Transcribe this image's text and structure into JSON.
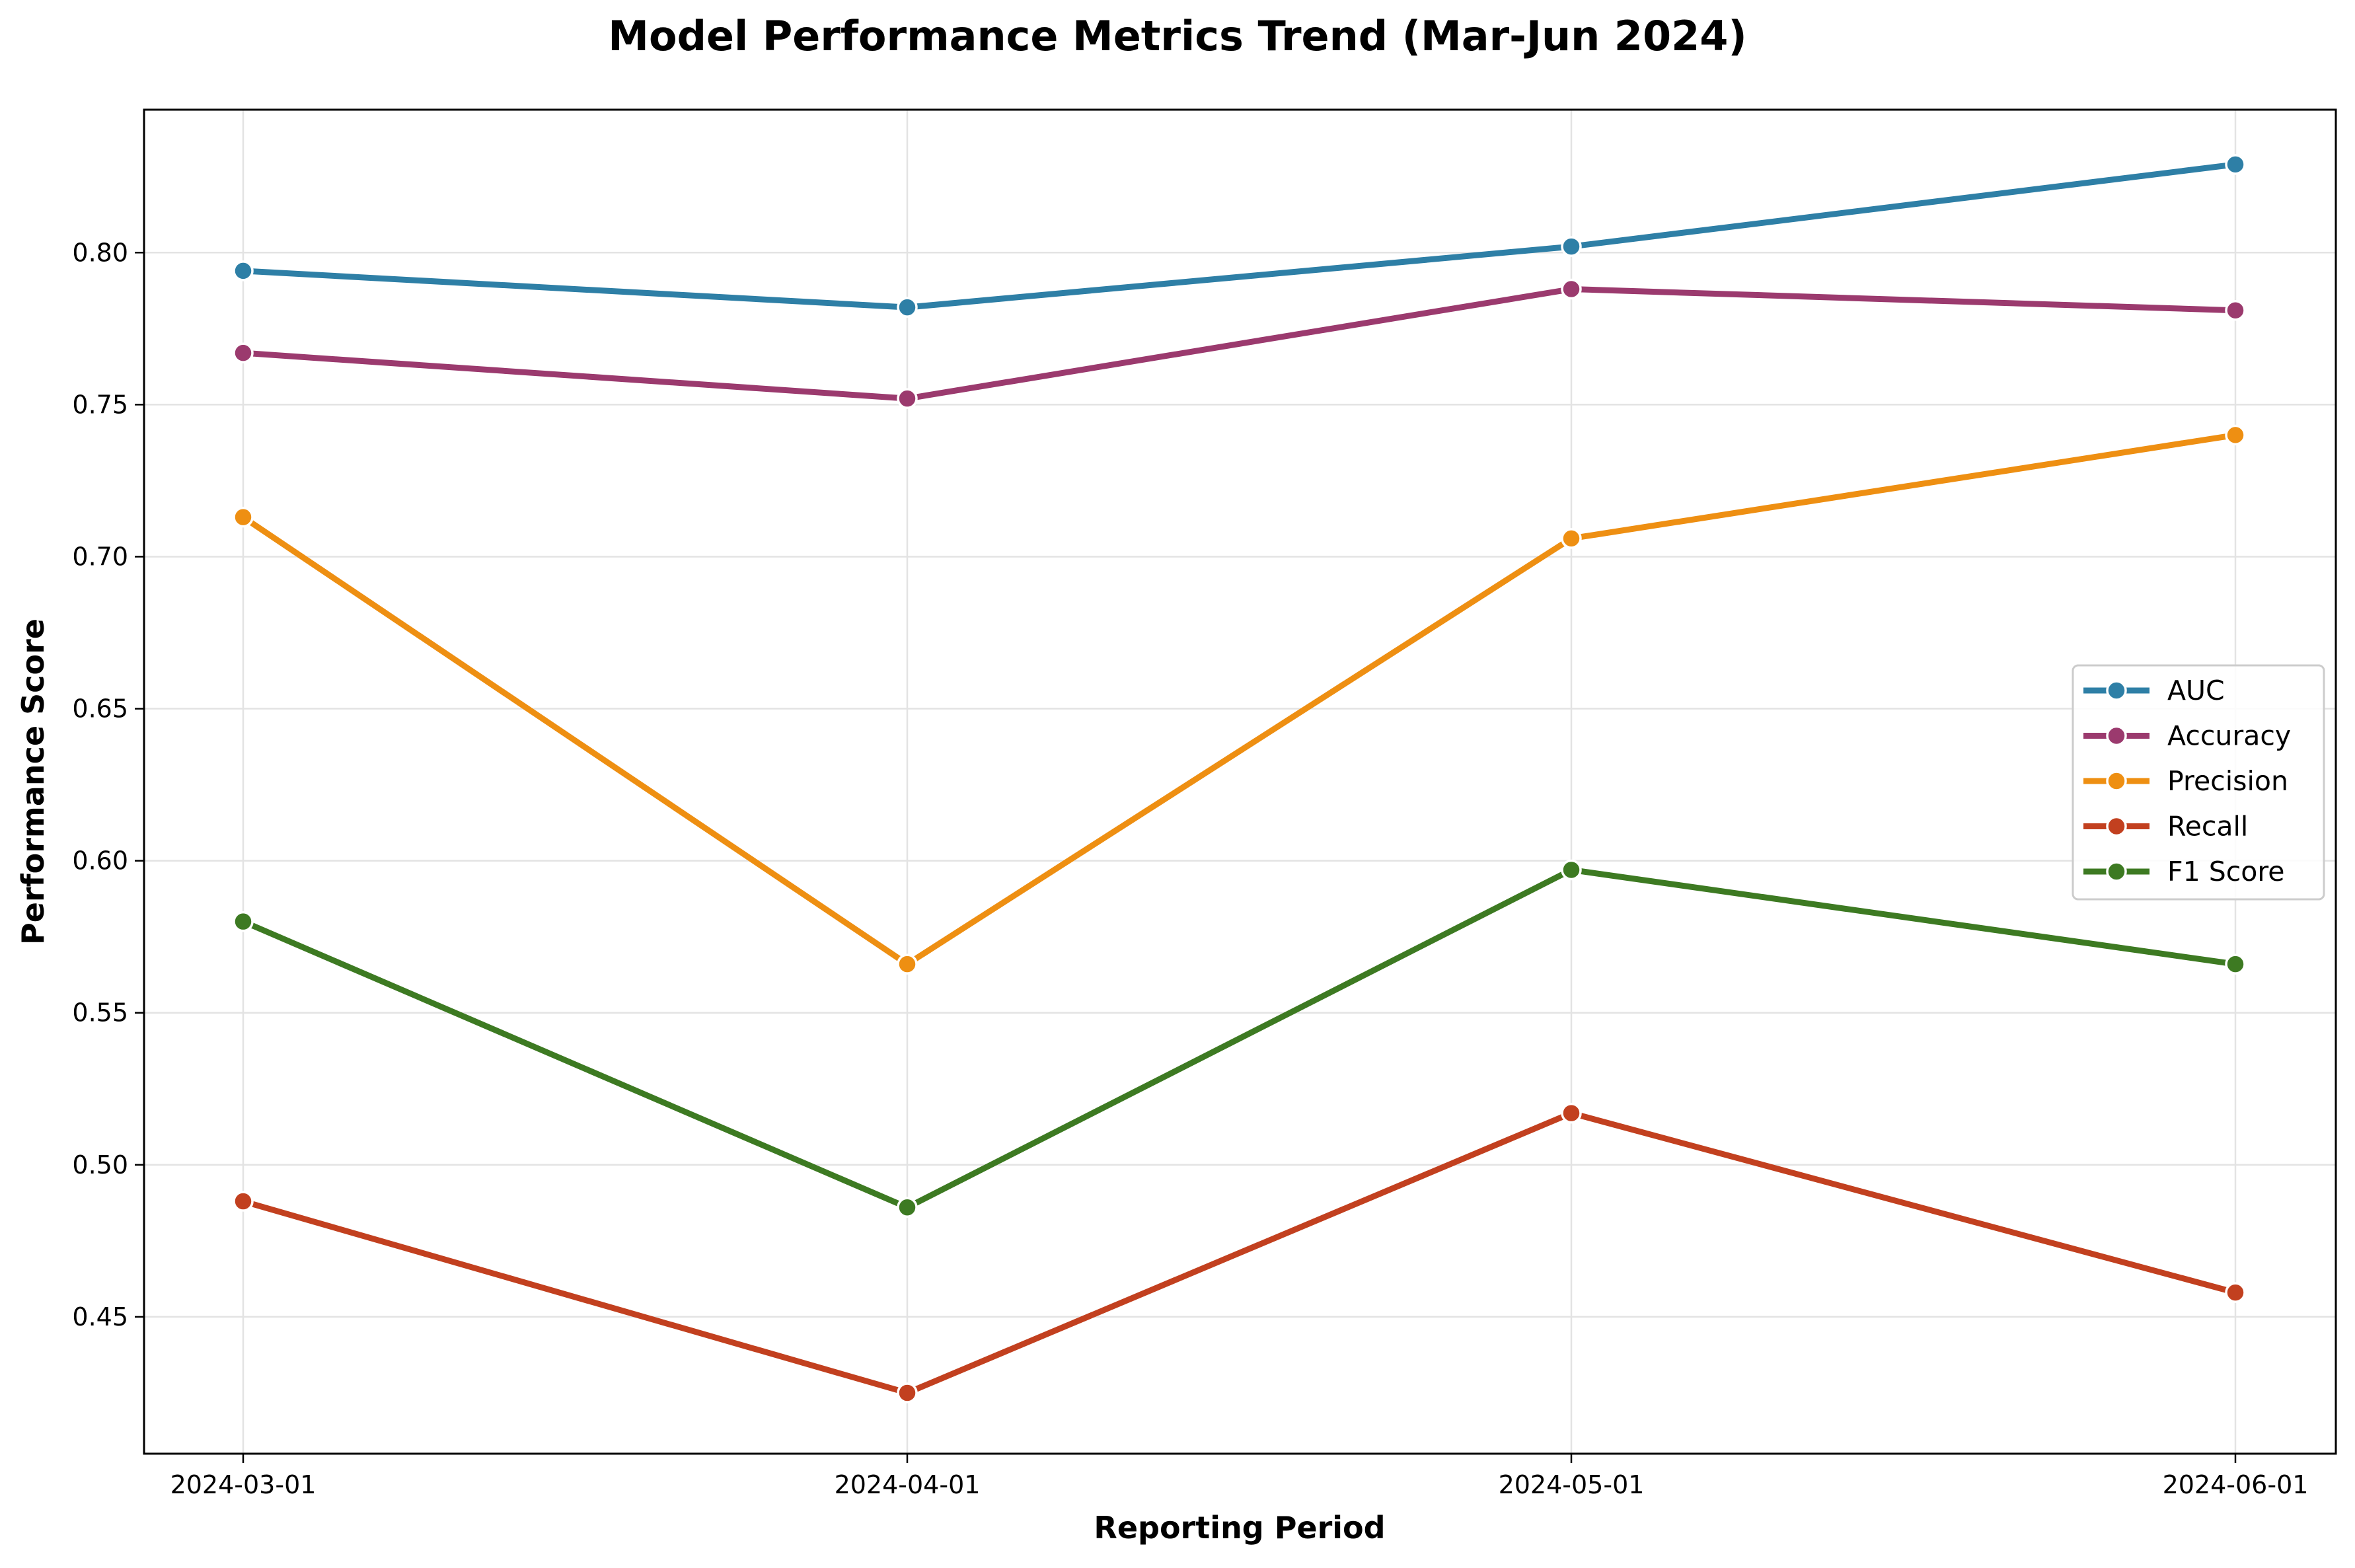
{
  "chart_data": {
    "type": "line",
    "title": "Model Performance Metrics Trend (Mar-Jun 2024)",
    "xlabel": "Reporting Period",
    "ylabel": "Performance Score",
    "categories": [
      "2024-03-01",
      "2024-04-01",
      "2024-05-01",
      "2024-06-01"
    ],
    "ylim": [
      0.405,
      0.847
    ],
    "yticks": [
      0.45,
      0.5,
      0.55,
      0.6,
      0.65,
      0.7,
      0.75,
      0.8
    ],
    "ytick_labels": [
      "0.45",
      "0.50",
      "0.55",
      "0.60",
      "0.65",
      "0.70",
      "0.75",
      "0.80"
    ],
    "grid": true,
    "legend_position": "center-right",
    "series": [
      {
        "name": "AUC",
        "color": "#2e7fa6",
        "values": [
          0.794,
          0.782,
          0.802,
          0.829
        ]
      },
      {
        "name": "Accuracy",
        "color": "#9b3a6e",
        "values": [
          0.767,
          0.752,
          0.788,
          0.781
        ]
      },
      {
        "name": "Precision",
        "color": "#ee8f12",
        "values": [
          0.713,
          0.566,
          0.706,
          0.74
        ]
      },
      {
        "name": "Recall",
        "color": "#c2401f",
        "values": [
          0.488,
          0.425,
          0.517,
          0.458
        ]
      },
      {
        "name": "F1 Score",
        "color": "#3d7a22",
        "values": [
          0.58,
          0.486,
          0.597,
          0.566
        ]
      }
    ]
  }
}
